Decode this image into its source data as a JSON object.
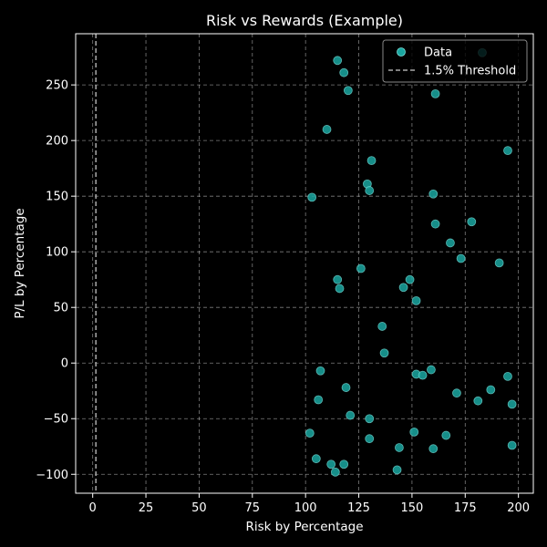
{
  "chart_data": {
    "type": "scatter",
    "title": "Risk vs Rewards (Example)",
    "xlabel": "Risk by Percentage",
    "ylabel": "P/L by Percentage",
    "xlim": [
      -8,
      207
    ],
    "ylim": [
      -117,
      296
    ],
    "xticks": [
      0,
      25,
      50,
      75,
      100,
      125,
      150,
      175,
      200
    ],
    "yticks": [
      -100,
      -50,
      0,
      50,
      100,
      150,
      200,
      250
    ],
    "grid": true,
    "legend_position": "top-right",
    "colors": {
      "background": "#000000",
      "point_fill": "#1aa7a1",
      "point_edge": "#7ae0da",
      "threshold": "#aaaaaa",
      "grid": "#b0b0b0",
      "text": "#ffffff"
    },
    "threshold": {
      "name": "1.5% Threshold",
      "x": 1.5,
      "style": "dashed"
    },
    "series": [
      {
        "name": "Data",
        "points": [
          [
            115,
            272
          ],
          [
            118,
            261
          ],
          [
            120,
            245
          ],
          [
            161,
            242
          ],
          [
            183,
            279
          ],
          [
            110,
            210
          ],
          [
            195,
            191
          ],
          [
            131,
            182
          ],
          [
            129,
            161
          ],
          [
            130,
            155
          ],
          [
            103,
            149
          ],
          [
            160,
            152
          ],
          [
            161,
            125
          ],
          [
            178,
            127
          ],
          [
            168,
            108
          ],
          [
            173,
            94
          ],
          [
            191,
            90
          ],
          [
            126,
            85
          ],
          [
            115,
            75
          ],
          [
            116,
            67
          ],
          [
            149,
            75
          ],
          [
            146,
            68
          ],
          [
            152,
            56
          ],
          [
            136,
            33
          ],
          [
            137,
            9
          ],
          [
            107,
            -7
          ],
          [
            152,
            -10
          ],
          [
            155,
            -11
          ],
          [
            159,
            -6
          ],
          [
            195,
            -12
          ],
          [
            119,
            -22
          ],
          [
            106,
            -33
          ],
          [
            171,
            -27
          ],
          [
            181,
            -34
          ],
          [
            187,
            -24
          ],
          [
            197,
            -37
          ],
          [
            121,
            -47
          ],
          [
            130,
            -50
          ],
          [
            102,
            -63
          ],
          [
            151,
            -62
          ],
          [
            166,
            -65
          ],
          [
            130,
            -68
          ],
          [
            144,
            -76
          ],
          [
            160,
            -77
          ],
          [
            197,
            -74
          ],
          [
            105,
            -86
          ],
          [
            112,
            -91
          ],
          [
            118,
            -91
          ],
          [
            114,
            -98
          ],
          [
            143,
            -96
          ]
        ]
      }
    ]
  }
}
